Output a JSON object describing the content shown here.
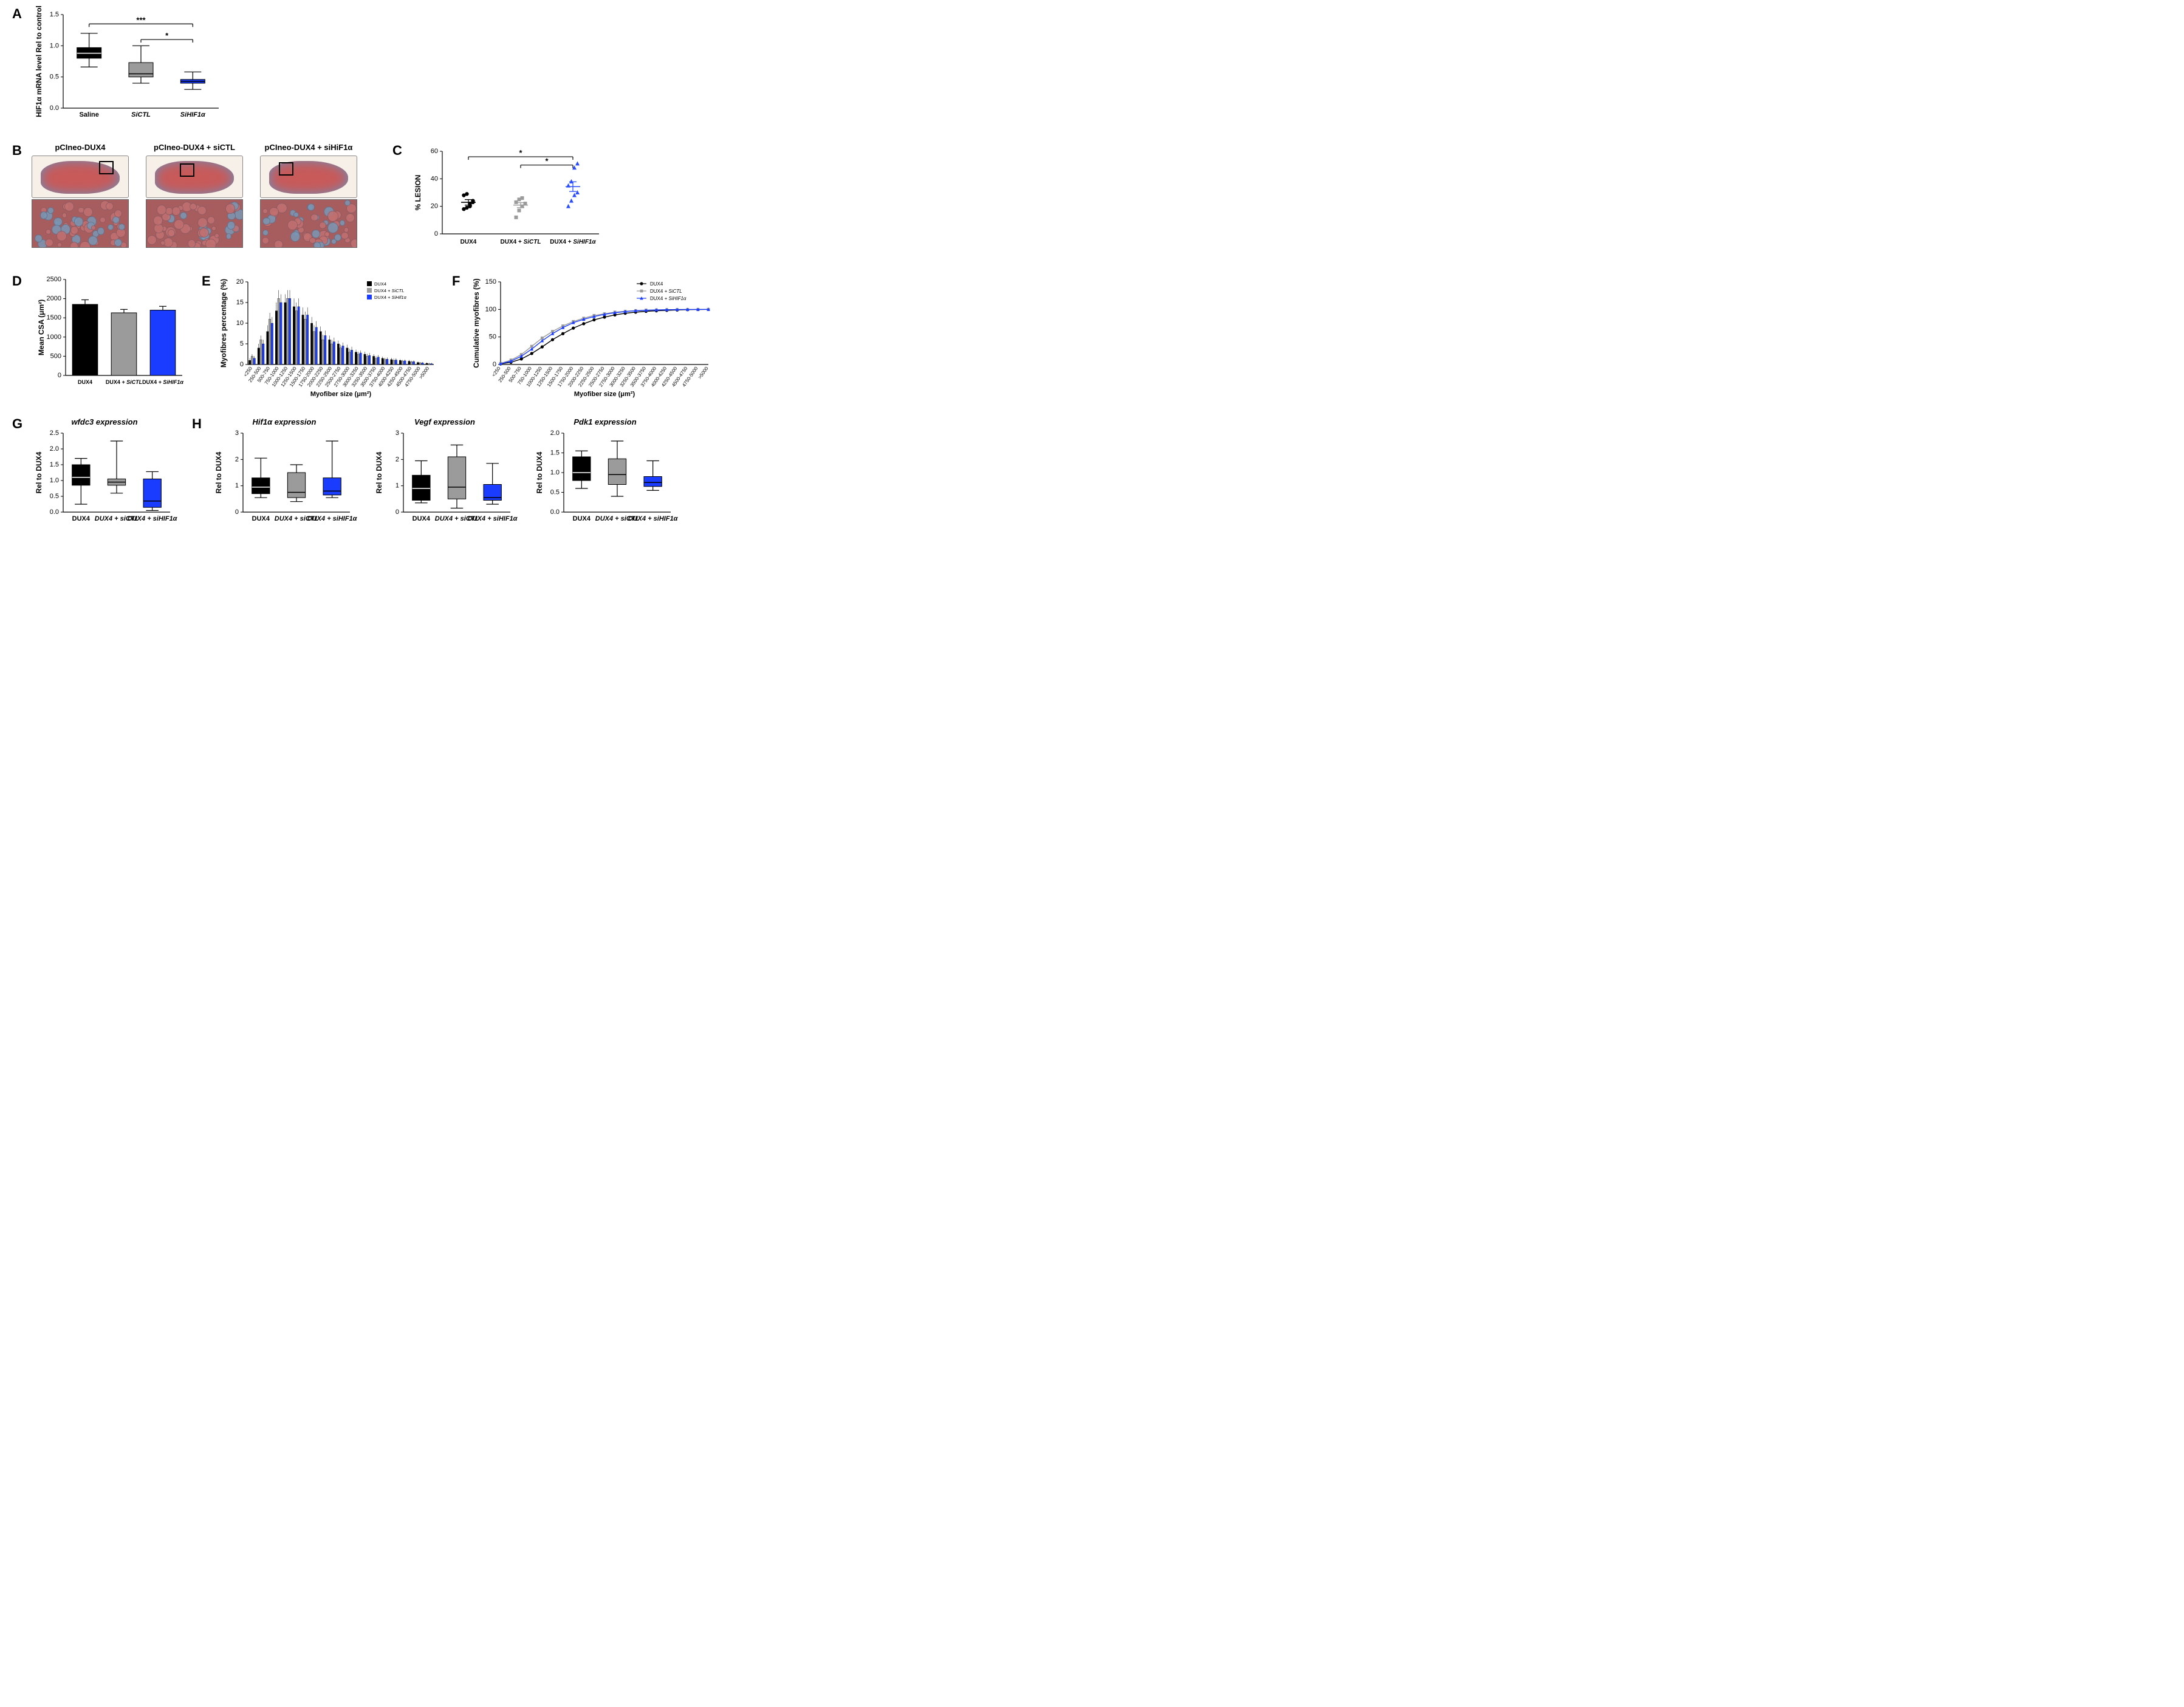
{
  "colors": {
    "black": "#000000",
    "grey": "#9b9b9b",
    "blue": "#1a3cff",
    "blue_marker": "#2a4dff",
    "histo_bg": "#f7f0e8",
    "tissue": "#c85a5a",
    "tissue_stroma": "#6b8fb8",
    "histo_zoom_bg": "#a75d5e",
    "histo_cell_red": "#c27070",
    "histo_cell_blue": "#7a97b5"
  },
  "panelA": {
    "ylabel": "HIF1α mRNA level Rel to control",
    "ylim": [
      0,
      1.5
    ],
    "ytick_step": 0.5,
    "categories": [
      "Saline",
      "SiCTL",
      "SiHIF1α"
    ],
    "category_italic": [
      false,
      true,
      true
    ],
    "boxes": [
      {
        "min": 0.66,
        "q1": 0.8,
        "median": 0.88,
        "q3": 0.97,
        "max": 1.2,
        "fill": "#000000",
        "median_color": "#ffffff"
      },
      {
        "min": 0.4,
        "q1": 0.5,
        "median": 0.55,
        "q3": 0.73,
        "max": 1.0,
        "fill": "#9b9b9b",
        "median_color": "#000000"
      },
      {
        "min": 0.3,
        "q1": 0.4,
        "median": 0.43,
        "q3": 0.46,
        "max": 0.58,
        "fill": "#1a3cff",
        "median_color": "#000000"
      }
    ],
    "sig_bars": [
      {
        "from": 0,
        "to": 2,
        "y": 1.35,
        "label": "***"
      },
      {
        "from": 1,
        "to": 2,
        "y": 1.1,
        "label": "*"
      }
    ]
  },
  "panelB": {
    "titles": [
      "pCIneo-DUX4",
      "pCIneo-DUX4 + siCTL",
      "pCIneo-DUX4 + siHiF1α"
    ]
  },
  "panelC": {
    "ylabel": "% LESION",
    "ylim": [
      0,
      60
    ],
    "ytick_step": 20,
    "categories": [
      "DUX4",
      "DUX4 + ",
      "DUX4 + "
    ],
    "category_suffix_italic": [
      "",
      "SiCTL",
      "SiHIF1α"
    ],
    "points": {
      "DUX4": {
        "color": "#000000",
        "marker": "circle",
        "y": [
          18,
          19,
          20,
          23,
          28,
          29,
          22,
          24
        ],
        "mean": 22.9,
        "sem": 2.0
      },
      "DUX4+SiCTL": {
        "color": "#9b9b9b",
        "marker": "square",
        "y": [
          12,
          17,
          20,
          22,
          23,
          25,
          26,
          22
        ],
        "mean": 20.9,
        "sem": 1.8
      },
      "DUX4+SiHIF1a": {
        "color": "#2a4dff",
        "marker": "triangle",
        "y": [
          20,
          24,
          28,
          30,
          35,
          38,
          48,
          51
        ],
        "mean": 34.3,
        "sem": 3.5
      }
    },
    "sig_bars": [
      {
        "from": 0,
        "to": 2,
        "y": 56,
        "label": "*"
      },
      {
        "from": 1,
        "to": 2,
        "y": 50,
        "label": "*"
      }
    ]
  },
  "panelD": {
    "ylabel": "Mean CSA (μm²)",
    "ylim": [
      0,
      2500
    ],
    "ytick_step": 500,
    "categories": [
      "DUX4",
      "DUX4 + SiCTL",
      "DUX4 + SiHIF1α"
    ],
    "category_bold": true,
    "bars": [
      {
        "value": 1850,
        "err": 120,
        "fill": "#000000"
      },
      {
        "value": 1630,
        "err": 90,
        "fill": "#9b9b9b"
      },
      {
        "value": 1700,
        "err": 100,
        "fill": "#1a3cff"
      }
    ]
  },
  "panelE": {
    "xlabel": "Myofiber size (μm²)",
    "ylabel": "Myofibres percentage (%)",
    "ylim": [
      0,
      20
    ],
    "ytick_step": 5,
    "bins": [
      "<250",
      "250-500",
      "500-750",
      "750-1000",
      "1000-1250",
      "1250-1500",
      "1500-1750",
      "1750-2000",
      "2000-2250",
      "2250-2500",
      "2500-2750",
      "2750-3000",
      "3000-3250",
      "3250-3500",
      "3500-3750",
      "3750-4000",
      "4000-4250",
      "4250-4500",
      "4500-4750",
      "4750-5000",
      ">5000"
    ],
    "legend": [
      {
        "label": "DUX4",
        "italic": false,
        "color": "#000000"
      },
      {
        "label": "DUX4 + SiCTL",
        "italic": true,
        "color": "#9b9b9b"
      },
      {
        "label": "DUX4 + SiHif1α",
        "italic": true,
        "color": "#1a3cff"
      }
    ],
    "series": {
      "DUX4": [
        1,
        4,
        8,
        13,
        15,
        14,
        12,
        10,
        8,
        6,
        5,
        4,
        3,
        2.5,
        2,
        1.5,
        1.2,
        1,
        0.8,
        0.5,
        0.3
      ],
      "DUX4+SiCTL": [
        2,
        6,
        11,
        16,
        16,
        13,
        11,
        8,
        6,
        5,
        4,
        3,
        2.5,
        2,
        1.5,
        1.2,
        1,
        0.8,
        0.6,
        0.4,
        0.2
      ],
      "DUX4+SiHIF1a": [
        1.5,
        5,
        10,
        15,
        16,
        14,
        12,
        9,
        7,
        5.5,
        4.5,
        3.5,
        2.8,
        2.2,
        1.8,
        1.3,
        1.1,
        0.9,
        0.7,
        0.4,
        0.2
      ]
    },
    "err": [
      0.5,
      1,
      1.5,
      2,
      2,
      2,
      1.8,
      1.5,
      1.2,
      1,
      0.8,
      0.8,
      0.6,
      0.6,
      0.5,
      0.4,
      0.4,
      0.3,
      0.3,
      0.2,
      0.2
    ]
  },
  "panelF": {
    "xlabel": "Myofiber size (μm²)",
    "ylabel": "Cumulative myofibres (%)",
    "ylim": [
      0,
      150
    ],
    "ytick_step": 50,
    "bins": [
      "<250",
      "250-500",
      "500-750",
      "750-1000",
      "1000-1250",
      "1250-1500",
      "1500-1750",
      "1750-2000",
      "2000-2250",
      "2250-2500",
      "2500-2750",
      "2750-3000",
      "3000-3250",
      "3250-3500",
      "3500-3750",
      "3750-4000",
      "4000-4250",
      "4250-4500",
      "4500-4750",
      "4750-5000",
      ">5000"
    ],
    "legend": [
      {
        "label": "DUX4",
        "italic_part": "",
        "color": "#000000",
        "marker": "circle"
      },
      {
        "label": "DUX4 + SiCTL",
        "italic_part": "SiCTL",
        "color": "#9b9b9b",
        "marker": "square"
      },
      {
        "label": "DUX4 + SiHIF1α",
        "italic_part": "SiHIF1α",
        "color": "#1a3cff",
        "marker": "triangle"
      }
    ],
    "series": {
      "DUX4": [
        1,
        4,
        10,
        20,
        32,
        45,
        56,
        66,
        74,
        81,
        86,
        90,
        93,
        95,
        96.5,
        97.5,
        98.3,
        99,
        99.5,
        99.8,
        100
      ],
      "DUX4+SiCTL": [
        2,
        8,
        18,
        33,
        48,
        60,
        70,
        78,
        84,
        89,
        92,
        95,
        96.5,
        97.8,
        98.6,
        99.2,
        99.5,
        99.7,
        99.9,
        99.95,
        100
      ],
      "DUX4+SiHIF1a": [
        1.5,
        6,
        15,
        28,
        43,
        56,
        67,
        76,
        82,
        87,
        91,
        94,
        96,
        97.5,
        98.5,
        99,
        99.4,
        99.7,
        99.85,
        99.95,
        100
      ]
    }
  },
  "box_panels": {
    "common_cats": [
      "DUX4",
      "DUX4 + siCTL",
      "DUX4 + siHIF1α"
    ],
    "G": {
      "title": "wfdc3 expression",
      "ylabel": "Rel to DUX4",
      "ylim": [
        0,
        2.5
      ],
      "ytick_step": 0.5,
      "boxes": [
        {
          "min": 0.25,
          "q1": 0.85,
          "median": 1.1,
          "q3": 1.5,
          "max": 1.7,
          "fill": "#000000",
          "median_color": "#ffffff"
        },
        {
          "min": 0.6,
          "q1": 0.85,
          "median": 0.95,
          "q3": 1.05,
          "max": 2.25,
          "fill": "#9b9b9b",
          "median_color": "#000000"
        },
        {
          "min": 0.05,
          "q1": 0.15,
          "median": 0.35,
          "q3": 1.05,
          "max": 1.28,
          "fill": "#1a3cff",
          "median_color": "#000000"
        }
      ]
    },
    "H1": {
      "title": "Hif1α expression",
      "ylabel": "Rel to DUX4",
      "ylim": [
        0,
        3
      ],
      "ytick_step": 1,
      "boxes": [
        {
          "min": 0.55,
          "q1": 0.7,
          "median": 0.95,
          "q3": 1.3,
          "max": 2.05,
          "fill": "#000000",
          "median_color": "#ffffff"
        },
        {
          "min": 0.4,
          "q1": 0.55,
          "median": 0.75,
          "q3": 1.5,
          "max": 1.8,
          "fill": "#9b9b9b",
          "median_color": "#000000"
        },
        {
          "min": 0.55,
          "q1": 0.65,
          "median": 0.8,
          "q3": 1.3,
          "max": 2.7,
          "fill": "#1a3cff",
          "median_color": "#000000"
        }
      ]
    },
    "H2": {
      "title": "Vegf expression",
      "ylabel": "Rel to DUX4",
      "ylim": [
        0,
        3
      ],
      "ytick_step": 1,
      "boxes": [
        {
          "min": 0.35,
          "q1": 0.45,
          "median": 0.9,
          "q3": 1.4,
          "max": 1.95,
          "fill": "#000000",
          "median_color": "#ffffff"
        },
        {
          "min": 0.15,
          "q1": 0.5,
          "median": 0.95,
          "q3": 2.1,
          "max": 2.55,
          "fill": "#9b9b9b",
          "median_color": "#000000"
        },
        {
          "min": 0.3,
          "q1": 0.45,
          "median": 0.55,
          "q3": 1.05,
          "max": 1.85,
          "fill": "#1a3cff",
          "median_color": "#000000"
        }
      ]
    },
    "H3": {
      "title": "Pdk1 expression",
      "ylabel": "Rel to DUX4",
      "ylim": [
        0,
        2.0
      ],
      "ytick_step": 0.5,
      "boxes": [
        {
          "min": 0.6,
          "q1": 0.8,
          "median": 1.0,
          "q3": 1.4,
          "max": 1.55,
          "fill": "#000000",
          "median_color": "#ffffff"
        },
        {
          "min": 0.4,
          "q1": 0.7,
          "median": 0.95,
          "q3": 1.35,
          "max": 1.8,
          "fill": "#9b9b9b",
          "median_color": "#000000"
        },
        {
          "min": 0.55,
          "q1": 0.65,
          "median": 0.75,
          "q3": 0.9,
          "max": 1.3,
          "fill": "#1a3cff",
          "median_color": "#000000"
        }
      ]
    }
  }
}
